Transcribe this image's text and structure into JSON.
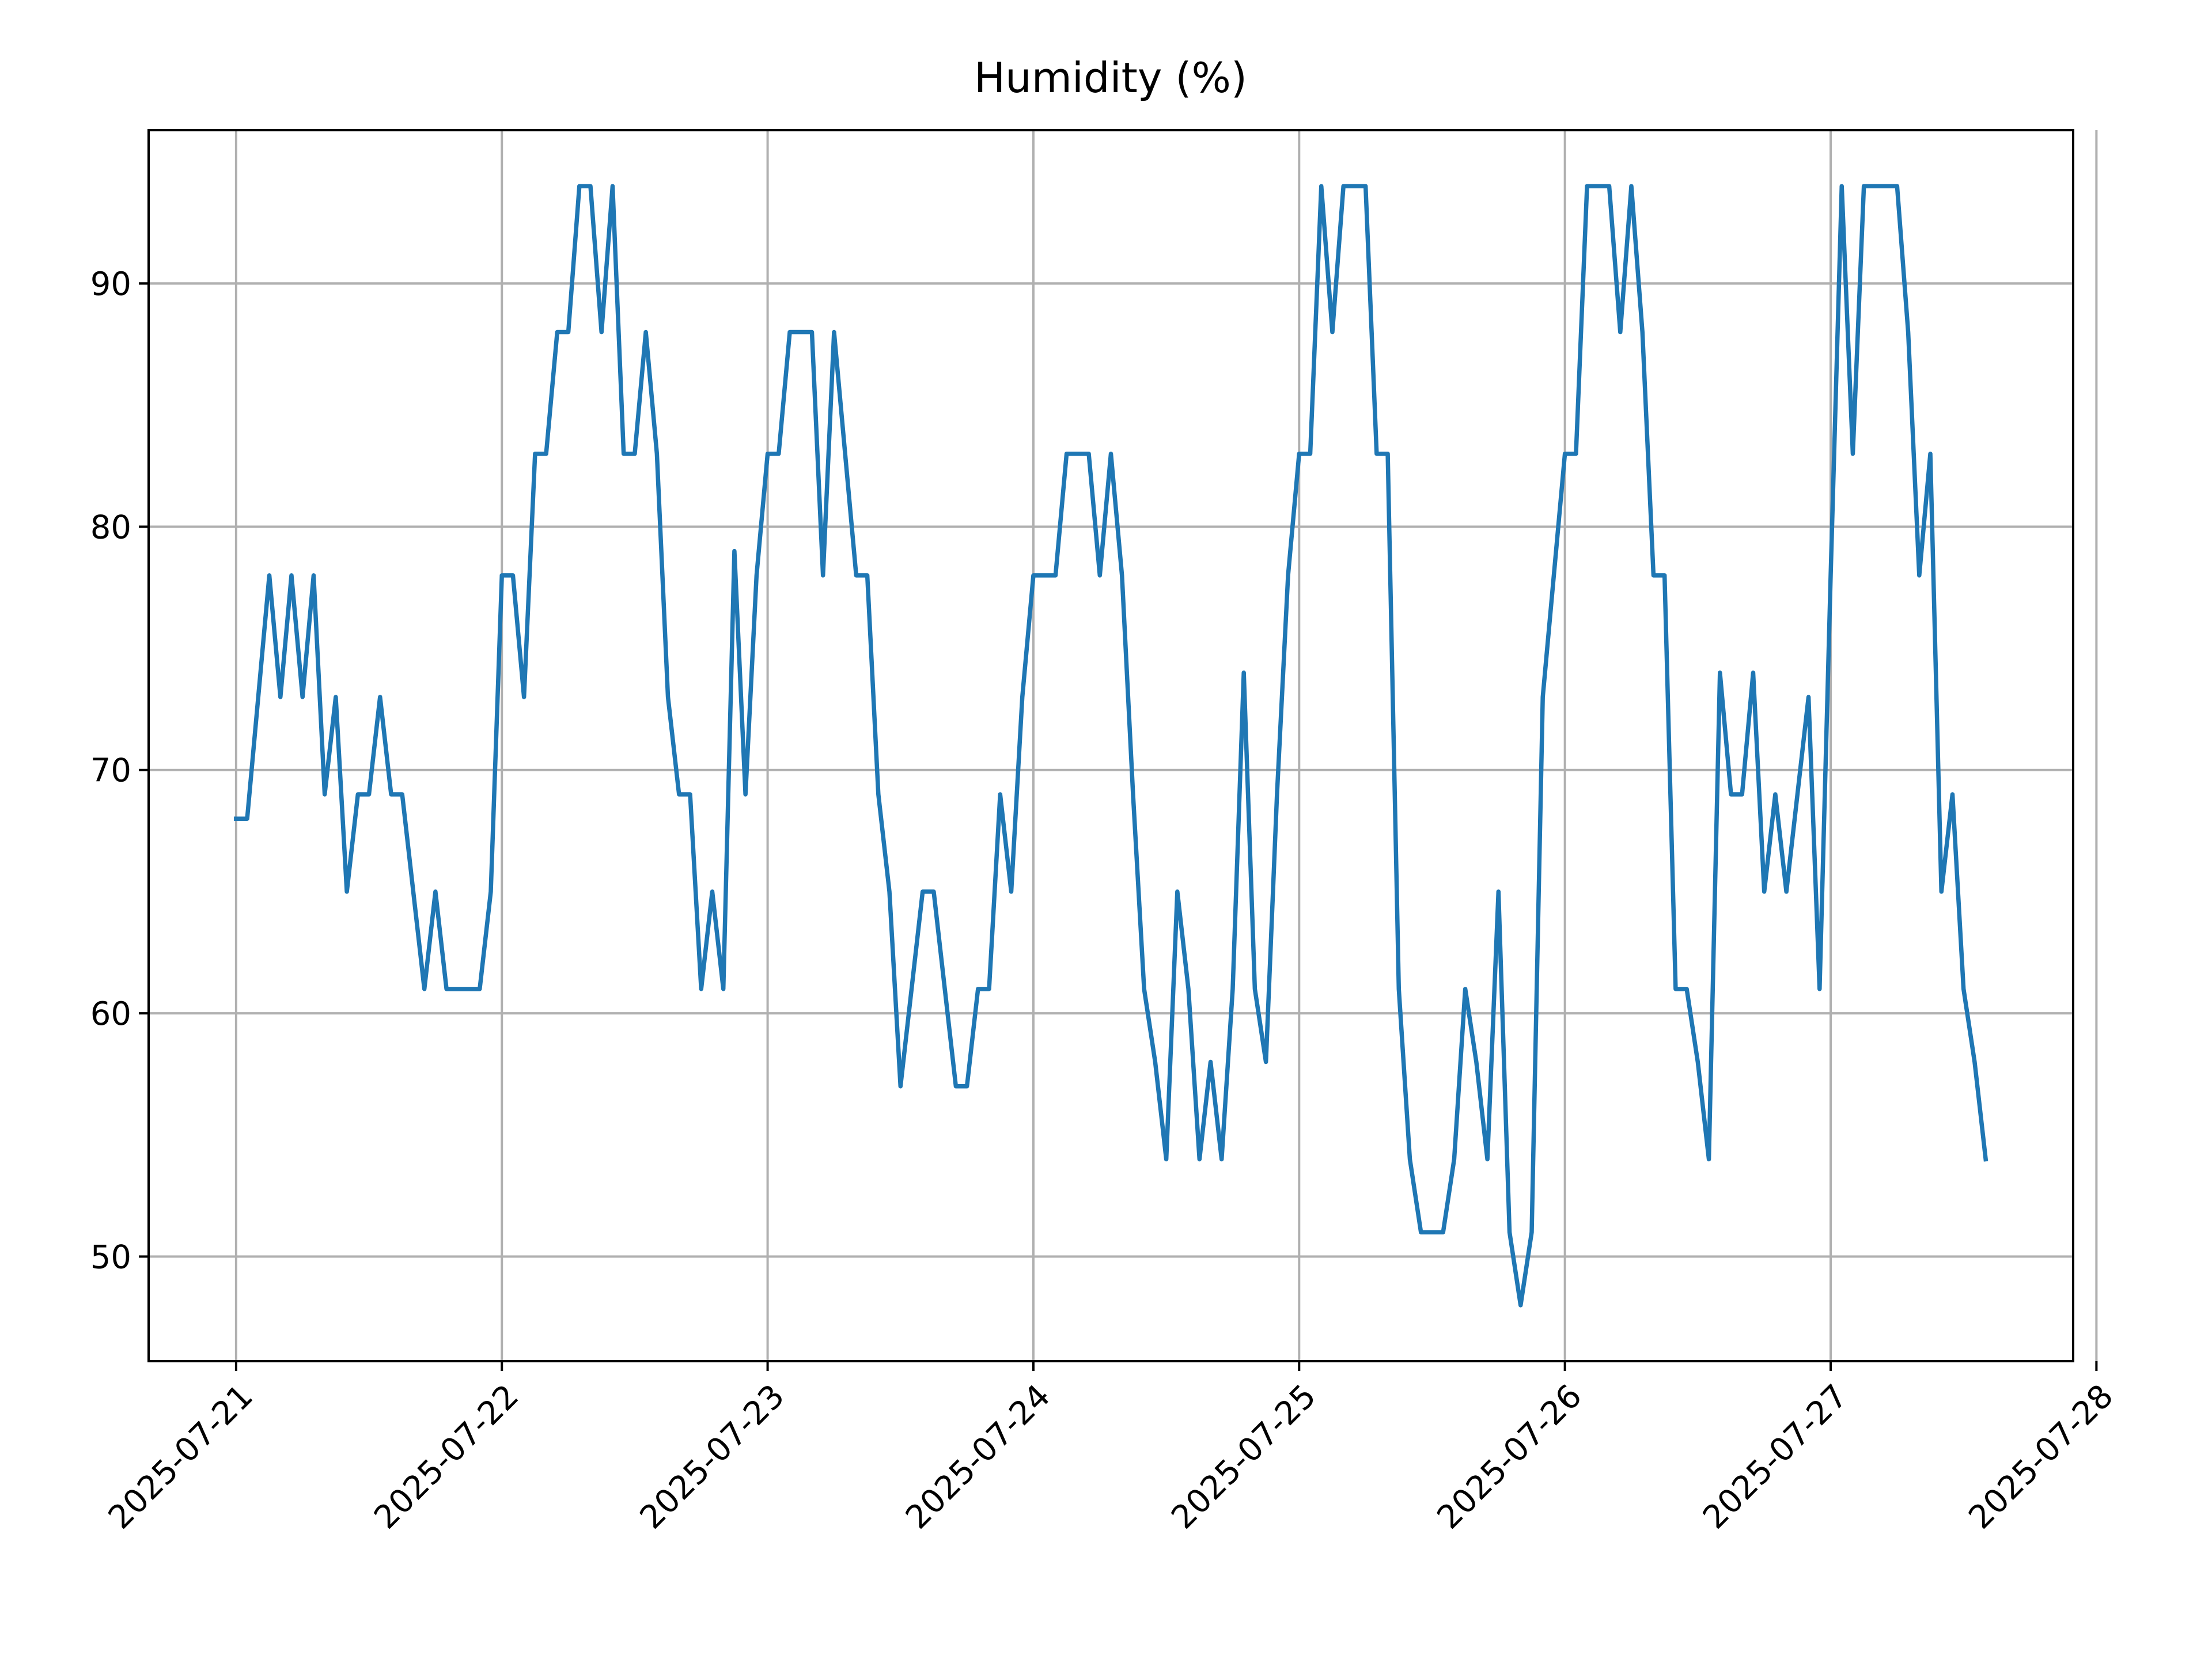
{
  "chart_data": {
    "type": "line",
    "title": "Humidity (%)",
    "color": "#1f77b4",
    "grid": true,
    "x": [
      "2025-07-21 00:00",
      "2025-07-21 01:00",
      "2025-07-21 02:00",
      "2025-07-21 03:00",
      "2025-07-21 04:00",
      "2025-07-21 05:00",
      "2025-07-21 06:00",
      "2025-07-21 07:00",
      "2025-07-21 08:00",
      "2025-07-21 09:00",
      "2025-07-21 10:00",
      "2025-07-21 11:00",
      "2025-07-21 12:00",
      "2025-07-21 13:00",
      "2025-07-21 14:00",
      "2025-07-21 15:00",
      "2025-07-21 16:00",
      "2025-07-21 17:00",
      "2025-07-21 18:00",
      "2025-07-21 19:00",
      "2025-07-21 20:00",
      "2025-07-21 21:00",
      "2025-07-21 22:00",
      "2025-07-21 23:00",
      "2025-07-22 00:00",
      "2025-07-22 01:00",
      "2025-07-22 02:00",
      "2025-07-22 03:00",
      "2025-07-22 04:00",
      "2025-07-22 05:00",
      "2025-07-22 06:00",
      "2025-07-22 07:00",
      "2025-07-22 08:00",
      "2025-07-22 09:00",
      "2025-07-22 10:00",
      "2025-07-22 11:00",
      "2025-07-22 12:00",
      "2025-07-22 13:00",
      "2025-07-22 14:00",
      "2025-07-22 15:00",
      "2025-07-22 16:00",
      "2025-07-22 17:00",
      "2025-07-22 18:00",
      "2025-07-22 19:00",
      "2025-07-22 20:00",
      "2025-07-22 21:00",
      "2025-07-22 22:00",
      "2025-07-22 23:00",
      "2025-07-23 00:00",
      "2025-07-23 01:00",
      "2025-07-23 02:00",
      "2025-07-23 03:00",
      "2025-07-23 04:00",
      "2025-07-23 05:00",
      "2025-07-23 06:00",
      "2025-07-23 07:00",
      "2025-07-23 08:00",
      "2025-07-23 09:00",
      "2025-07-23 10:00",
      "2025-07-23 11:00",
      "2025-07-23 12:00",
      "2025-07-23 13:00",
      "2025-07-23 14:00",
      "2025-07-23 15:00",
      "2025-07-23 16:00",
      "2025-07-23 17:00",
      "2025-07-23 18:00",
      "2025-07-23 19:00",
      "2025-07-23 20:00",
      "2025-07-23 21:00",
      "2025-07-23 22:00",
      "2025-07-23 23:00",
      "2025-07-24 00:00",
      "2025-07-24 01:00",
      "2025-07-24 02:00",
      "2025-07-24 03:00",
      "2025-07-24 04:00",
      "2025-07-24 05:00",
      "2025-07-24 06:00",
      "2025-07-24 07:00",
      "2025-07-24 08:00",
      "2025-07-24 09:00",
      "2025-07-24 10:00",
      "2025-07-24 11:00",
      "2025-07-24 12:00",
      "2025-07-24 13:00",
      "2025-07-24 14:00",
      "2025-07-24 15:00",
      "2025-07-24 16:00",
      "2025-07-24 17:00",
      "2025-07-24 18:00",
      "2025-07-24 19:00",
      "2025-07-24 20:00",
      "2025-07-24 21:00",
      "2025-07-24 22:00",
      "2025-07-24 23:00",
      "2025-07-25 00:00",
      "2025-07-25 01:00",
      "2025-07-25 02:00",
      "2025-07-25 03:00",
      "2025-07-25 04:00",
      "2025-07-25 05:00",
      "2025-07-25 06:00",
      "2025-07-25 07:00",
      "2025-07-25 08:00",
      "2025-07-25 09:00",
      "2025-07-25 10:00",
      "2025-07-25 11:00",
      "2025-07-25 12:00",
      "2025-07-25 13:00",
      "2025-07-25 14:00",
      "2025-07-25 15:00",
      "2025-07-25 16:00",
      "2025-07-25 17:00",
      "2025-07-25 18:00",
      "2025-07-25 19:00",
      "2025-07-25 20:00",
      "2025-07-25 21:00",
      "2025-07-25 22:00",
      "2025-07-25 23:00",
      "2025-07-26 00:00",
      "2025-07-26 01:00",
      "2025-07-26 02:00",
      "2025-07-26 03:00",
      "2025-07-26 04:00",
      "2025-07-26 05:00",
      "2025-07-26 06:00",
      "2025-07-26 07:00",
      "2025-07-26 08:00",
      "2025-07-26 09:00",
      "2025-07-26 10:00",
      "2025-07-26 11:00",
      "2025-07-26 12:00",
      "2025-07-26 13:00",
      "2025-07-26 14:00",
      "2025-07-26 15:00",
      "2025-07-26 16:00",
      "2025-07-26 17:00",
      "2025-07-26 18:00",
      "2025-07-26 19:00",
      "2025-07-26 20:00",
      "2025-07-26 21:00",
      "2025-07-26 22:00",
      "2025-07-26 23:00",
      "2025-07-27 00:00",
      "2025-07-27 01:00",
      "2025-07-27 02:00",
      "2025-07-27 03:00",
      "2025-07-27 04:00",
      "2025-07-27 05:00",
      "2025-07-27 06:00",
      "2025-07-27 07:00",
      "2025-07-27 08:00",
      "2025-07-27 09:00",
      "2025-07-27 10:00",
      "2025-07-27 11:00",
      "2025-07-27 12:00",
      "2025-07-27 13:00",
      "2025-07-27 14:00"
    ],
    "values": [
      68,
      68,
      73,
      78,
      73,
      78,
      73,
      78,
      69,
      73,
      65,
      69,
      69,
      73,
      69,
      69,
      65,
      61,
      65,
      61,
      61,
      61,
      61,
      65,
      78,
      78,
      73,
      83,
      83,
      88,
      88,
      94,
      94,
      88,
      94,
      83,
      83,
      88,
      83,
      73,
      69,
      69,
      61,
      65,
      61,
      79,
      69,
      78,
      83,
      83,
      88,
      88,
      88,
      78,
      88,
      83,
      78,
      78,
      69,
      65,
      57,
      61,
      65,
      65,
      61,
      57,
      57,
      61,
      61,
      69,
      65,
      73,
      78,
      78,
      78,
      83,
      83,
      83,
      78,
      83,
      78,
      69,
      61,
      58,
      54,
      65,
      61,
      54,
      58,
      54,
      61,
      74,
      61,
      58,
      69,
      78,
      83,
      83,
      94,
      88,
      94,
      94,
      94,
      83,
      83,
      61,
      54,
      51,
      51,
      51,
      54,
      61,
      58,
      54,
      65,
      51,
      48,
      51,
      73,
      78,
      83,
      83,
      94,
      94,
      94,
      88,
      94,
      88,
      78,
      78,
      61,
      61,
      58,
      54,
      74,
      69,
      69,
      74,
      65,
      69,
      65,
      69,
      73,
      61,
      78,
      94,
      83,
      94,
      94,
      94,
      94,
      88,
      78,
      83,
      65,
      69,
      61,
      58,
      54
    ],
    "xlim": [
      "2025-07-20 16:06",
      "2025-07-27 21:54"
    ],
    "xticks": [
      "2025-07-21",
      "2025-07-22",
      "2025-07-23",
      "2025-07-24",
      "2025-07-25",
      "2025-07-26",
      "2025-07-27",
      "2025-07-28"
    ],
    "ylim": [
      45.7,
      96.3
    ],
    "yticks": [
      50,
      60,
      70,
      80,
      90
    ]
  }
}
